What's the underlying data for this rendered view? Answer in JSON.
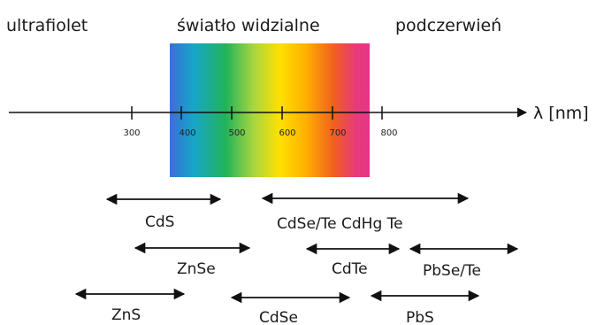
{
  "regions": {
    "uv": "ultrafiolet",
    "visible": "światło widzialne",
    "ir": "podczerwień"
  },
  "axis": {
    "symbol": "λ [nm]",
    "ticks": [
      "300",
      "400",
      "500",
      "600",
      "700",
      "800"
    ]
  },
  "spectrum_colors": [
    "#3a6fd8",
    "#17a6c8",
    "#22b35a",
    "#a8d640",
    "#ffe000",
    "#ffb000",
    "#f0601e",
    "#e83a78",
    "#e6368a"
  ],
  "materials": [
    {
      "label": "CdS"
    },
    {
      "label": "CdSe/Te CdHg Te"
    },
    {
      "label": "ZnSe"
    },
    {
      "label": "CdTe"
    },
    {
      "label": "PbSe/Te"
    },
    {
      "label": "ZnS"
    },
    {
      "label": "CdSe"
    },
    {
      "label": "PbS"
    }
  ]
}
